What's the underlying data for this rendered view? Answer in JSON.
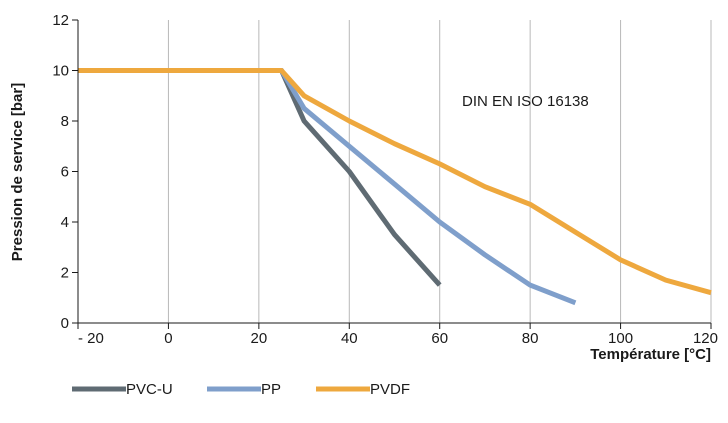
{
  "chart_data": {
    "type": "line",
    "title": "",
    "xlabel": "Température [°C]",
    "ylabel": "Pression de service [bar]",
    "xlim": [
      -20,
      120
    ],
    "ylim": [
      0,
      12
    ],
    "x_ticks": [
      -20,
      0,
      20,
      40,
      60,
      80,
      100,
      120
    ],
    "x_tick_labels": [
      "- 20",
      "0",
      "20",
      "40",
      "60",
      "80",
      "100",
      "120"
    ],
    "y_ticks": [
      0,
      2,
      4,
      6,
      8,
      10,
      12
    ],
    "y_tick_labels": [
      "0",
      "2",
      "4",
      "6",
      "8",
      "10",
      "12"
    ],
    "grid": "vertical",
    "annotation": "DIN EN ISO 16138",
    "legend_position": "bottom-left",
    "series": [
      {
        "name": "PVC-U",
        "color": "#5f6b73",
        "points": [
          [
            -20,
            10
          ],
          [
            25,
            10
          ],
          [
            30,
            8
          ],
          [
            40,
            6
          ],
          [
            50,
            3.5
          ],
          [
            60,
            1.5
          ]
        ]
      },
      {
        "name": "PP",
        "color": "#7f9fcb",
        "points": [
          [
            -20,
            10
          ],
          [
            25,
            10
          ],
          [
            30,
            8.5
          ],
          [
            40,
            7
          ],
          [
            50,
            5.5
          ],
          [
            60,
            4
          ],
          [
            70,
            2.7
          ],
          [
            80,
            1.5
          ],
          [
            90,
            0.8
          ]
        ]
      },
      {
        "name": "PVDF",
        "color": "#eea83e",
        "points": [
          [
            -20,
            10
          ],
          [
            10,
            10
          ],
          [
            25,
            10
          ],
          [
            30,
            9
          ],
          [
            40,
            8
          ],
          [
            50,
            7.1
          ],
          [
            60,
            6.3
          ],
          [
            70,
            5.4
          ],
          [
            80,
            4.7
          ],
          [
            90,
            3.6
          ],
          [
            100,
            2.5
          ],
          [
            110,
            1.7
          ],
          [
            120,
            1.2
          ]
        ]
      }
    ]
  }
}
